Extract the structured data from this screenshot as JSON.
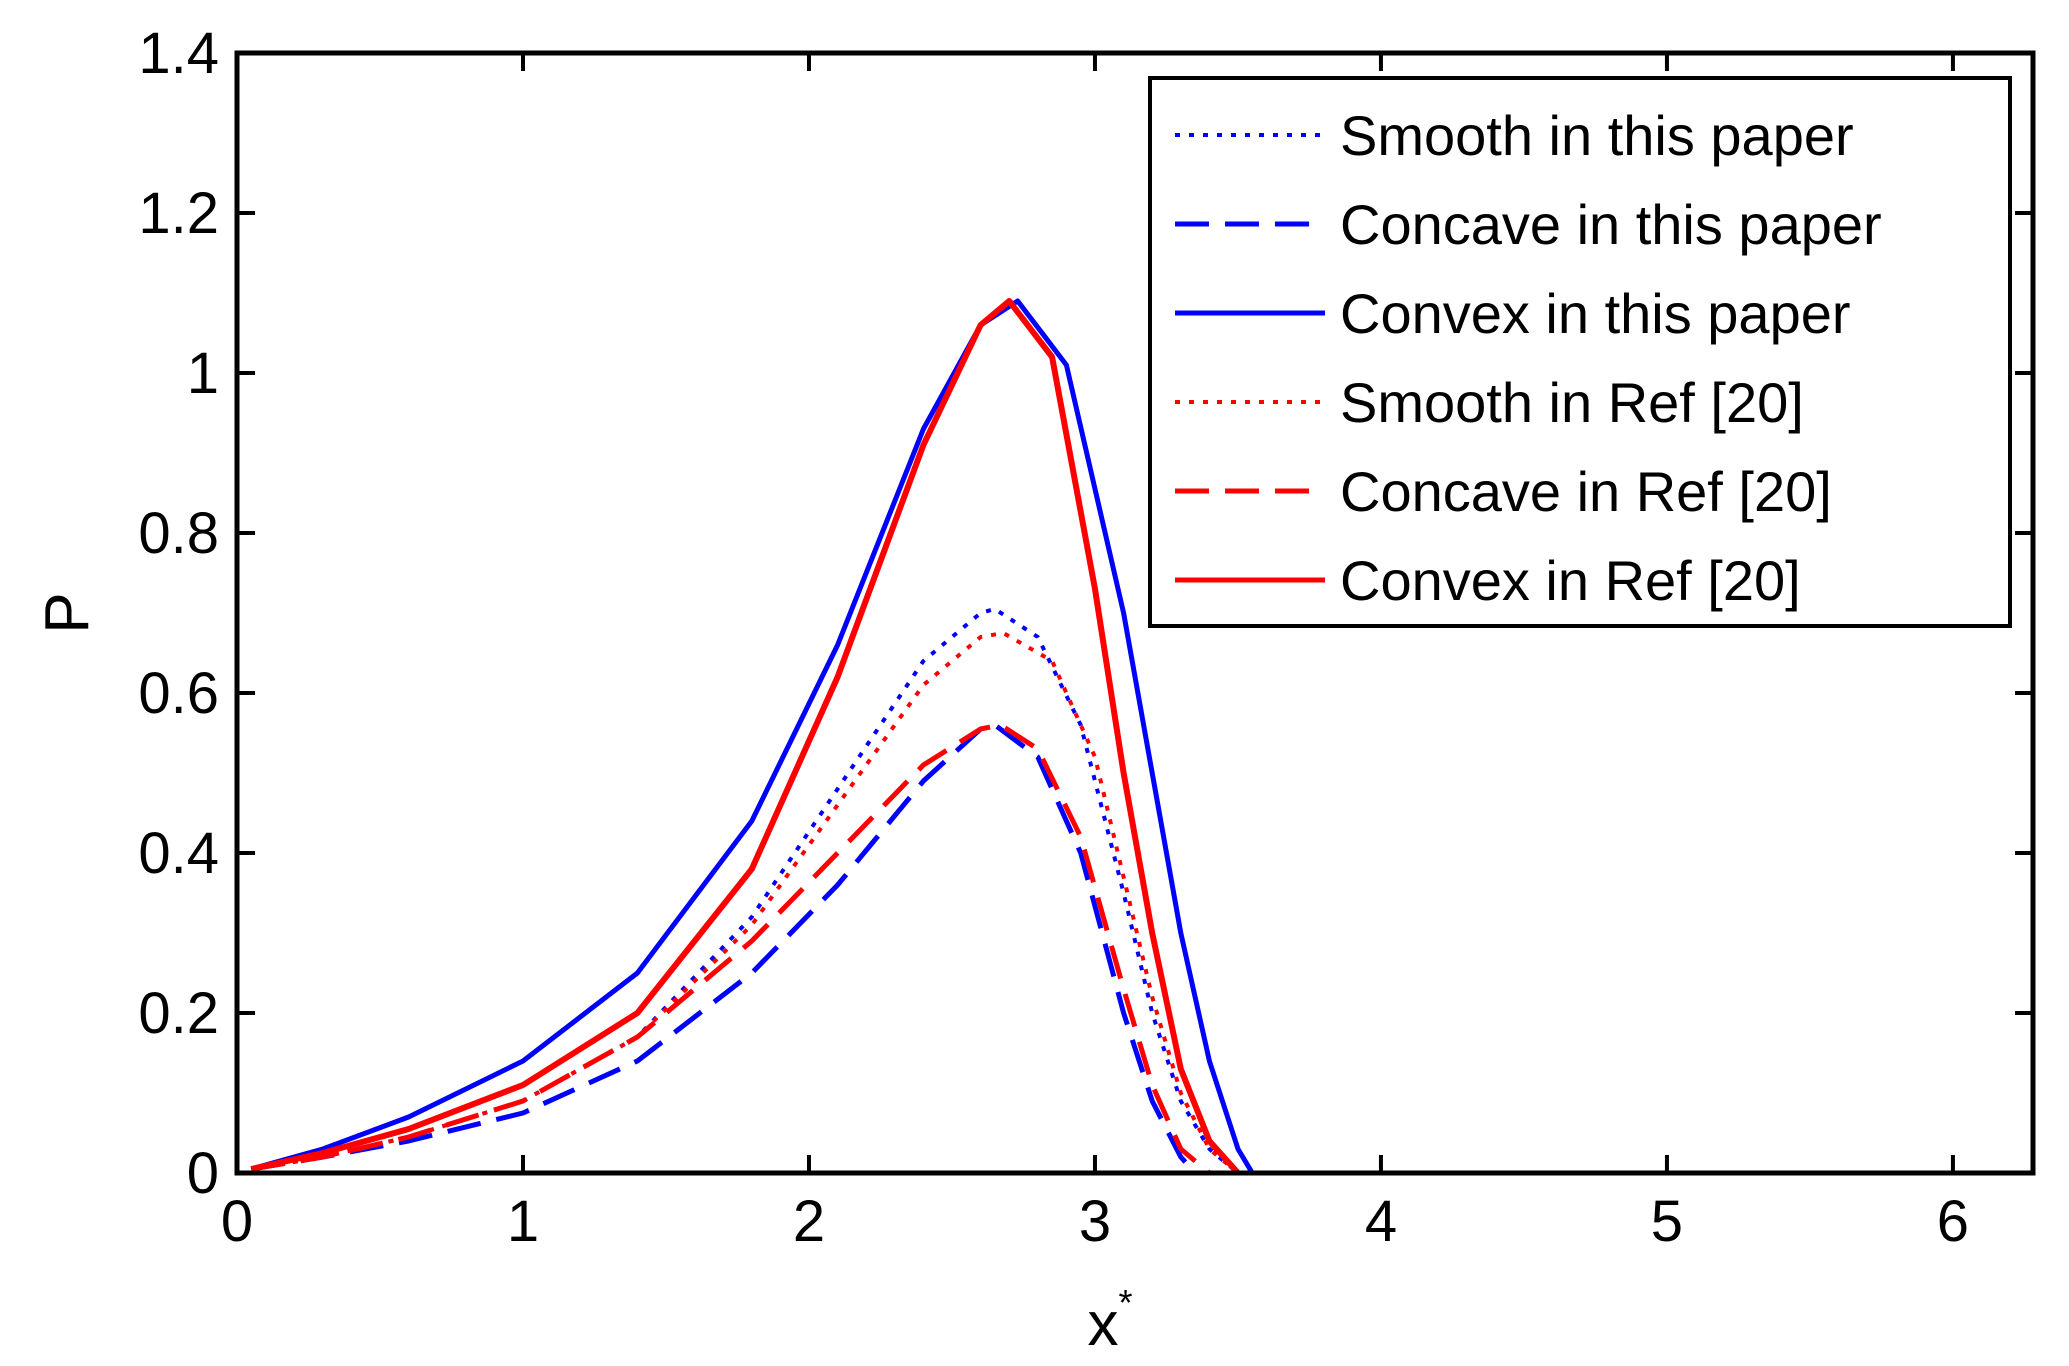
{
  "chart_data": {
    "type": "line",
    "title": "",
    "xlabel": "x",
    "xlabel_superscript": "*",
    "ylabel": "P",
    "xlim": [
      0,
      6.28
    ],
    "ylim": [
      0,
      1.4
    ],
    "xticks": [
      0,
      1,
      2,
      3,
      4,
      5,
      6
    ],
    "xtick_labels": [
      "0",
      "1",
      "2",
      "3",
      "4",
      "5",
      "6"
    ],
    "yticks": [
      0,
      0.2,
      0.4,
      0.6,
      0.8,
      1.0,
      1.2,
      1.4
    ],
    "ytick_labels": [
      "0",
      "0.2",
      "0.4",
      "0.6",
      "0.8",
      "1",
      "1.2",
      "1.4"
    ],
    "grid": false,
    "legend_position": "top-right",
    "series": [
      {
        "name": "Smooth in this paper",
        "color": "#0000ff",
        "dash": "dotted",
        "x": [
          0.05,
          0.3,
          0.6,
          1.0,
          1.4,
          1.8,
          2.1,
          2.4,
          2.6,
          2.65,
          2.8,
          2.95,
          3.1,
          3.2,
          3.3,
          3.4,
          3.5
        ],
        "y": [
          0.005,
          0.02,
          0.045,
          0.09,
          0.17,
          0.32,
          0.48,
          0.64,
          0.7,
          0.705,
          0.67,
          0.56,
          0.35,
          0.2,
          0.09,
          0.03,
          0.0
        ]
      },
      {
        "name": "Concave in this paper",
        "color": "#0000ff",
        "dash": "dashed",
        "x": [
          0.05,
          0.3,
          0.6,
          1.0,
          1.4,
          1.8,
          2.1,
          2.4,
          2.6,
          2.65,
          2.8,
          2.95,
          3.1,
          3.2,
          3.3,
          3.35
        ],
        "y": [
          0.005,
          0.02,
          0.04,
          0.075,
          0.14,
          0.25,
          0.36,
          0.49,
          0.555,
          0.56,
          0.52,
          0.4,
          0.2,
          0.09,
          0.02,
          0.0
        ]
      },
      {
        "name": "Convex in this paper",
        "color": "#0000ff",
        "dash": "solid",
        "x": [
          0.05,
          0.3,
          0.6,
          1.0,
          1.4,
          1.8,
          2.1,
          2.4,
          2.6,
          2.73,
          2.9,
          3.1,
          3.2,
          3.3,
          3.4,
          3.5,
          3.55
        ],
        "y": [
          0.005,
          0.03,
          0.07,
          0.14,
          0.25,
          0.44,
          0.66,
          0.93,
          1.06,
          1.09,
          1.01,
          0.7,
          0.5,
          0.3,
          0.14,
          0.03,
          0.0
        ]
      },
      {
        "name": "Smooth in Ref [20]",
        "color": "#ff0000",
        "dash": "dotted",
        "x": [
          0.05,
          0.3,
          0.6,
          1.0,
          1.4,
          1.8,
          2.1,
          2.4,
          2.6,
          2.68,
          2.85,
          3.0,
          3.1,
          3.2,
          3.3,
          3.4,
          3.5
        ],
        "y": [
          0.005,
          0.02,
          0.045,
          0.09,
          0.17,
          0.31,
          0.46,
          0.61,
          0.67,
          0.675,
          0.64,
          0.52,
          0.37,
          0.22,
          0.1,
          0.03,
          0.0
        ]
      },
      {
        "name": "Concave in Ref [20]",
        "color": "#ff0000",
        "dash": "dashed",
        "x": [
          0.05,
          0.3,
          0.6,
          1.0,
          1.4,
          1.8,
          2.1,
          2.4,
          2.6,
          2.67,
          2.8,
          2.95,
          3.1,
          3.2,
          3.3,
          3.4
        ],
        "y": [
          0.005,
          0.02,
          0.045,
          0.09,
          0.17,
          0.29,
          0.4,
          0.51,
          0.555,
          0.56,
          0.53,
          0.42,
          0.23,
          0.11,
          0.03,
          0.0
        ]
      },
      {
        "name": "Convex in Ref [20]",
        "color": "#ff0000",
        "dash": "solid",
        "x": [
          0.05,
          0.3,
          0.6,
          1.0,
          1.4,
          1.8,
          2.1,
          2.4,
          2.6,
          2.7,
          2.85,
          3.0,
          3.1,
          3.2,
          3.3,
          3.4,
          3.5
        ],
        "y": [
          0.005,
          0.025,
          0.055,
          0.11,
          0.2,
          0.38,
          0.62,
          0.91,
          1.06,
          1.09,
          1.02,
          0.73,
          0.5,
          0.3,
          0.13,
          0.04,
          0.0
        ]
      }
    ]
  }
}
